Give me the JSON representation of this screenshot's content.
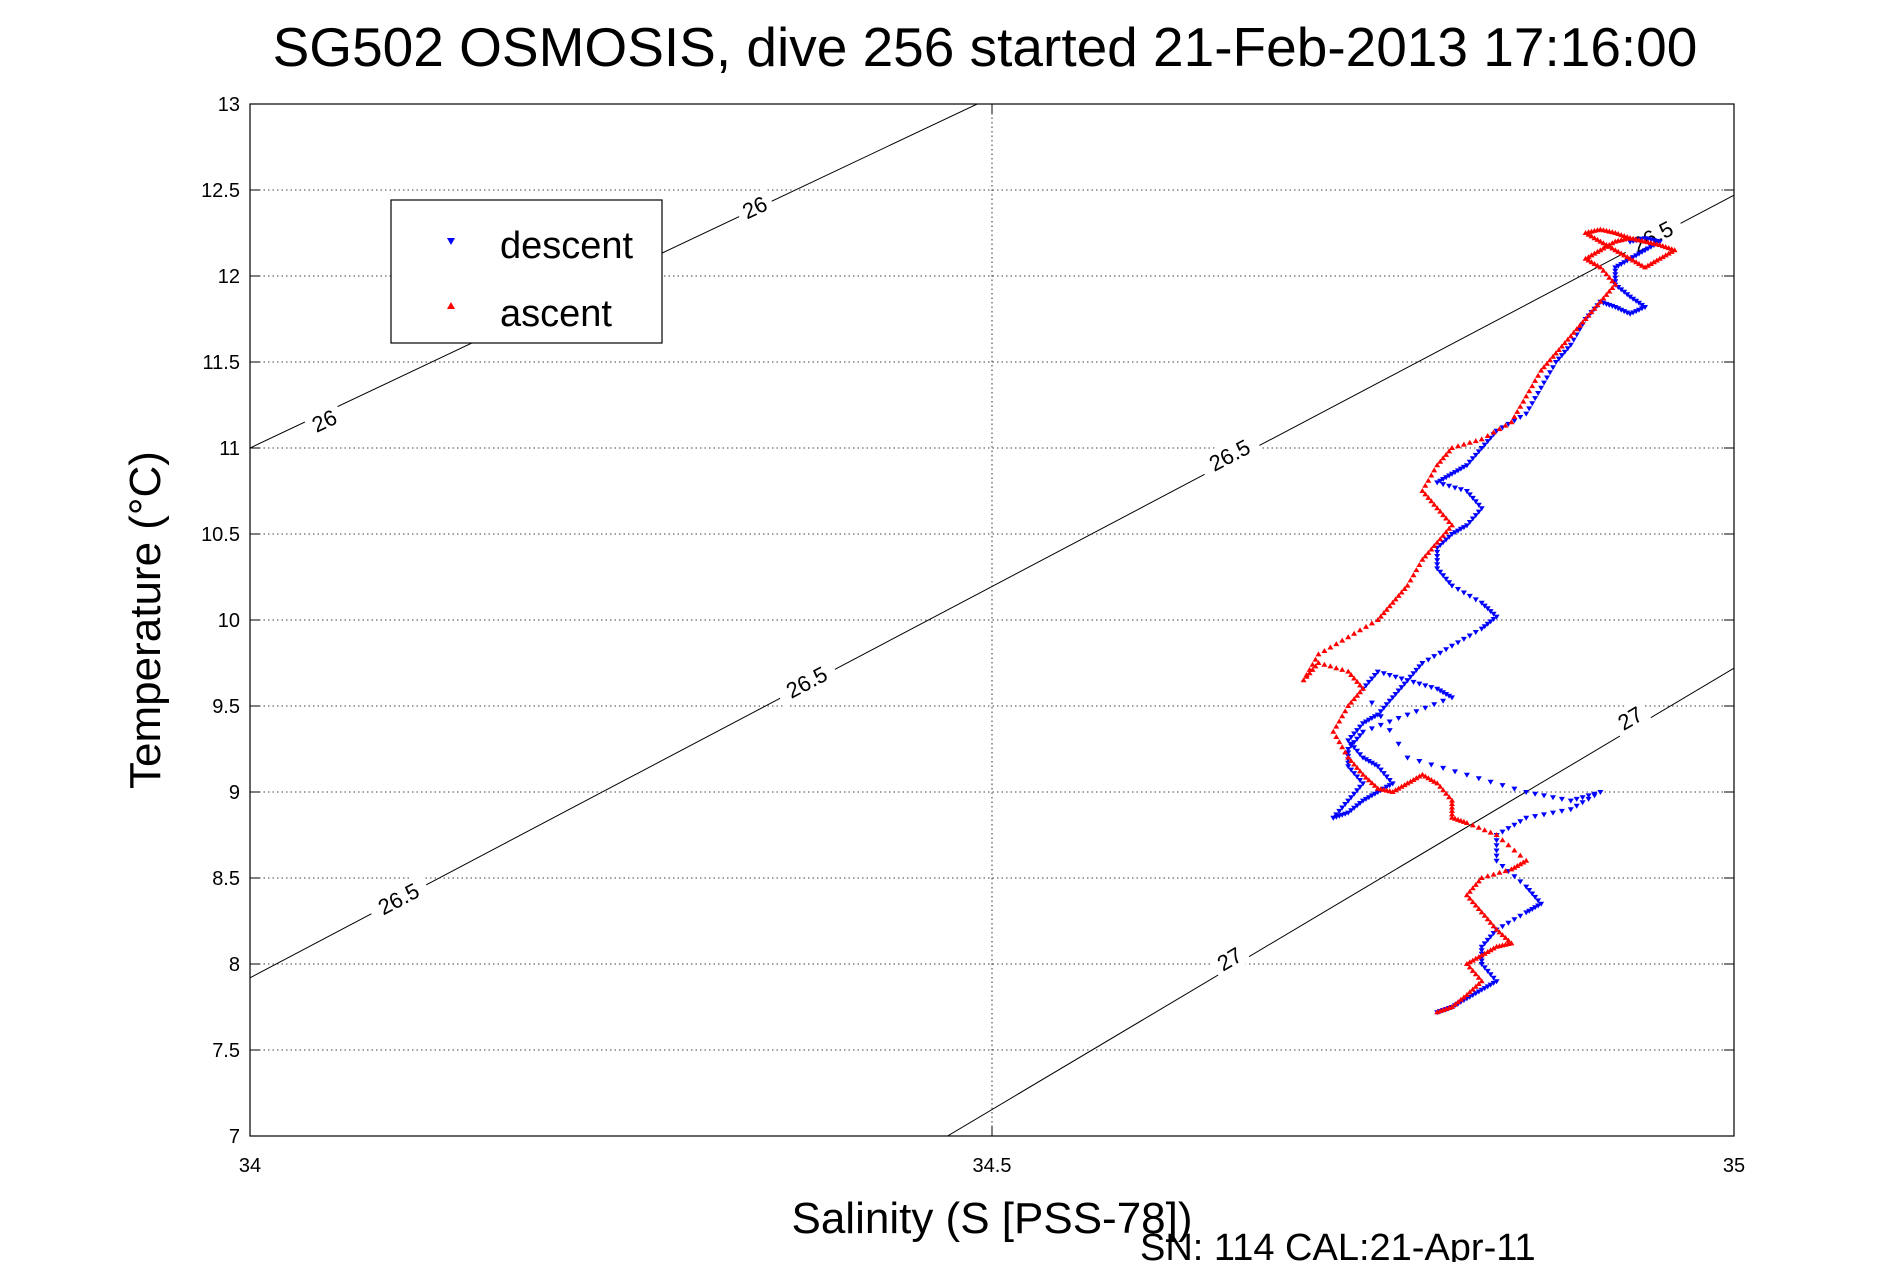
{
  "chart_data": {
    "type": "scatter",
    "title": "SG502 OSMOSIS, dive 256 started 21-Feb-2013 17:16:00",
    "xlabel": "Salinity (S [PSS-78])",
    "ylabel": "Temperature (°C)",
    "footer": "SN: 114  CAL:21-Apr-11",
    "xlim": [
      34,
      35
    ],
    "ylim": [
      7,
      13
    ],
    "xticks": [
      34,
      34.5,
      35
    ],
    "yticks": [
      7,
      7.5,
      8,
      8.5,
      9,
      9.5,
      10,
      10.5,
      11,
      11.5,
      12,
      12.5,
      13
    ],
    "xtick_labels": [
      "34",
      "34.5",
      "35"
    ],
    "ytick_labels": [
      "7",
      "7.5",
      "8",
      "8.5",
      "9",
      "9.5",
      "10",
      "10.5",
      "11",
      "11.5",
      "12",
      "12.5",
      "13"
    ],
    "grid": true,
    "legend_position": "top-left",
    "colors": {
      "descent": "#0000ff",
      "ascent": "#ff0000",
      "axes": "#000000",
      "grid": "#000000"
    },
    "contours": [
      {
        "label": "26",
        "points": [
          [
            34.0,
            11.0
          ],
          [
            34.49,
            13.0
          ]
        ]
      },
      {
        "label": "26.5",
        "points": [
          [
            34.0,
            7.92
          ],
          [
            35.0,
            12.47
          ]
        ]
      },
      {
        "label": "27",
        "points": [
          [
            34.47,
            7.0
          ],
          [
            35.0,
            9.72
          ]
        ]
      }
    ],
    "contour_labels": [
      {
        "text": "26",
        "x": 34.05,
        "y": 11.16,
        "contour": 0
      },
      {
        "text": "26",
        "x": 34.34,
        "y": 12.4,
        "contour": 0
      },
      {
        "text": "26.5",
        "x": 34.1,
        "y": 8.38,
        "contour": 1
      },
      {
        "text": "26.5",
        "x": 34.375,
        "y": 9.64,
        "contour": 1
      },
      {
        "text": "26.5",
        "x": 34.66,
        "y": 10.96,
        "contour": 1
      },
      {
        "text": "26.5",
        "x": 34.945,
        "y": 12.23,
        "contour": 1
      },
      {
        "text": "27",
        "x": 34.66,
        "y": 8.03,
        "contour": 2
      },
      {
        "text": "27",
        "x": 34.93,
        "y": 9.43,
        "contour": 2
      }
    ],
    "series": [
      {
        "name": "descent",
        "color": "#0000ff",
        "marker": "triangle-down",
        "x": [
          34.93,
          34.94,
          34.95,
          34.94,
          34.93,
          34.92,
          34.92,
          34.93,
          34.94,
          34.93,
          34.92,
          34.91,
          34.9,
          34.89,
          34.88,
          34.87,
          34.86,
          34.84,
          34.83,
          34.82,
          34.81,
          34.8,
          34.82,
          34.83,
          34.82,
          34.81,
          34.8,
          34.8,
          34.81,
          34.83,
          34.84,
          34.83,
          34.81,
          34.79,
          34.78,
          34.77,
          34.76,
          34.75,
          34.74,
          34.75,
          34.76,
          34.77,
          34.76,
          34.75,
          34.74,
          34.73,
          34.74,
          34.75,
          34.74,
          34.74,
          34.75,
          34.78,
          34.81,
          34.8,
          34.78,
          34.76,
          34.75,
          34.78,
          34.82,
          34.86,
          34.89,
          34.91,
          34.89,
          34.86,
          34.84,
          34.84,
          34.86,
          34.87,
          34.86,
          34.84,
          34.83,
          34.83,
          34.84,
          34.83,
          34.82,
          34.81,
          34.8
        ],
        "y": [
          12.2,
          12.22,
          12.2,
          12.15,
          12.1,
          12.05,
          11.95,
          11.88,
          11.82,
          11.78,
          11.82,
          11.85,
          11.75,
          11.6,
          11.5,
          11.35,
          11.2,
          11.1,
          11.0,
          10.9,
          10.85,
          10.8,
          10.75,
          10.65,
          10.55,
          10.5,
          10.42,
          10.3,
          10.2,
          10.1,
          10.02,
          9.95,
          9.85,
          9.75,
          9.65,
          9.55,
          9.45,
          9.4,
          9.3,
          9.2,
          9.15,
          9.05,
          9.0,
          8.95,
          8.88,
          8.85,
          8.95,
          9.05,
          9.15,
          9.25,
          9.35,
          9.45,
          9.55,
          9.6,
          9.65,
          9.7,
          9.6,
          9.2,
          9.1,
          9.0,
          8.95,
          9.0,
          8.9,
          8.85,
          8.75,
          8.6,
          8.45,
          8.35,
          8.3,
          8.2,
          8.1,
          8.0,
          7.9,
          7.85,
          7.8,
          7.75,
          7.72
        ]
      },
      {
        "name": "ascent",
        "color": "#ff0000",
        "marker": "triangle-up",
        "x": [
          34.8,
          34.81,
          34.82,
          34.83,
          34.82,
          34.83,
          34.84,
          34.85,
          34.84,
          34.83,
          34.82,
          34.83,
          34.85,
          34.86,
          34.84,
          34.82,
          34.81,
          34.81,
          34.8,
          34.79,
          34.78,
          34.77,
          34.76,
          34.75,
          34.74,
          34.73,
          34.74,
          34.75,
          34.74,
          34.72,
          34.71,
          34.72,
          34.74,
          34.76,
          34.77,
          34.78,
          34.79,
          34.8,
          34.81,
          34.8,
          34.79,
          34.8,
          34.81,
          34.83,
          34.85,
          34.86,
          34.87,
          34.88,
          34.89,
          34.9,
          34.91,
          34.92,
          34.91,
          34.9,
          34.91,
          34.92,
          34.93,
          34.94,
          34.95,
          34.96,
          34.95,
          34.94,
          34.93,
          34.92,
          34.91,
          34.9,
          34.91,
          34.92,
          34.93
        ],
        "y": [
          7.72,
          7.75,
          7.82,
          7.9,
          8.0,
          8.05,
          8.1,
          8.12,
          8.2,
          8.3,
          8.4,
          8.5,
          8.55,
          8.6,
          8.75,
          8.82,
          8.85,
          8.95,
          9.05,
          9.1,
          9.05,
          9.0,
          9.02,
          9.1,
          9.2,
          9.35,
          9.5,
          9.6,
          9.7,
          9.75,
          9.65,
          9.8,
          9.9,
          10.0,
          10.1,
          10.2,
          10.35,
          10.45,
          10.55,
          10.65,
          10.75,
          10.9,
          11.0,
          11.05,
          11.15,
          11.3,
          11.45,
          11.55,
          11.65,
          11.75,
          11.85,
          11.95,
          12.05,
          12.1,
          12.15,
          12.2,
          12.22,
          12.2,
          12.18,
          12.15,
          12.1,
          12.05,
          12.1,
          12.15,
          12.2,
          12.25,
          12.27,
          12.25,
          12.22
        ]
      }
    ]
  }
}
